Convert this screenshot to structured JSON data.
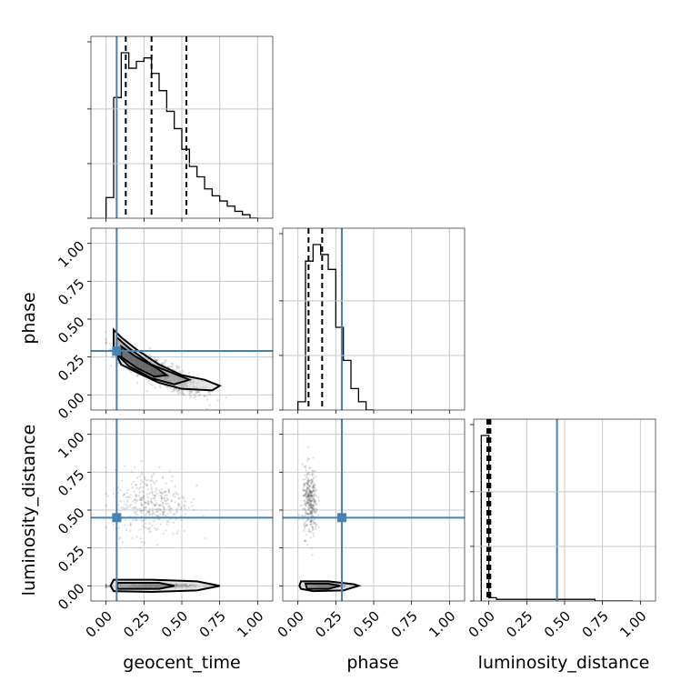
{
  "chart_data": {
    "type": "corner",
    "parameters": [
      "geocent_time",
      "phase",
      "luminosity_distance"
    ],
    "axis_labels": {
      "geocent_time": "geocent_time",
      "phase": "phase",
      "luminosity_distance": "luminosity_distance"
    },
    "ticks": [
      0.0,
      0.25,
      0.5,
      0.75,
      1.0
    ],
    "tick_labels": [
      "0.00",
      "0.25",
      "0.50",
      "0.75",
      "1.00"
    ],
    "ranges": {
      "geocent_time": [
        -0.1,
        1.1
      ],
      "phase": [
        -0.1,
        1.1
      ],
      "luminosity_distance": [
        -0.1,
        1.1
      ]
    },
    "truths": {
      "geocent_time": 0.07,
      "phase": 0.29,
      "luminosity_distance": 0.45
    },
    "truth_color": "#4682b4",
    "line_color": "#000000",
    "grid": true,
    "quantiles": {
      "geocent_time": [
        0.13,
        0.3,
        0.53
      ],
      "phase": [
        0.07,
        0.16,
        0.29
      ],
      "luminosity_distance": [
        -0.01,
        0.0,
        0.01
      ]
    },
    "histograms": {
      "geocent_time": {
        "bin_edges": [
          0.0,
          0.05,
          0.1,
          0.15,
          0.2,
          0.25,
          0.3,
          0.35,
          0.4,
          0.45,
          0.5,
          0.55,
          0.6,
          0.65,
          0.7,
          0.75,
          0.8,
          0.85,
          0.9,
          0.95,
          1.0
        ],
        "counts": [
          12,
          70,
          96,
          87,
          91,
          93,
          84,
          74,
          62,
          52,
          40,
          30,
          24,
          17,
          13,
          10,
          7,
          4,
          2,
          0
        ]
      },
      "phase": {
        "bin_edges": [
          0.0,
          0.05,
          0.1,
          0.15,
          0.2,
          0.25,
          0.3,
          0.35,
          0.4,
          0.45,
          0.5
        ],
        "counts": [
          5,
          90,
          100,
          94,
          85,
          50,
          30,
          13,
          5,
          0
        ]
      },
      "luminosity_distance": {
        "bin_edges": [
          -0.05,
          0.0,
          0.05,
          0.3,
          0.45,
          0.7,
          0.95
        ],
        "counts": [
          100,
          2,
          1,
          1,
          1,
          0
        ]
      }
    },
    "scatter_clouds": {
      "phase_vs_geocent_time": [
        {
          "x_center": 0.35,
          "x_spread": 0.28,
          "y_center": 0.15,
          "y_spread": 0.08,
          "slope": -0.45,
          "n": 900
        }
      ],
      "luminosity_distance_vs_geocent_time": [
        {
          "x_center": 0.32,
          "x_spread": 0.25,
          "y_center": 0.0,
          "y_spread": 0.012,
          "slope": 0,
          "n": 700
        },
        {
          "x_center": 0.3,
          "x_spread": 0.25,
          "y_center": 0.55,
          "y_spread": 0.22,
          "slope": 0,
          "n": 350
        }
      ],
      "luminosity_distance_vs_phase": [
        {
          "x_center": 0.18,
          "x_spread": 0.1,
          "y_center": 0.0,
          "y_spread": 0.012,
          "slope": 0,
          "n": 700
        },
        {
          "x_center": 0.08,
          "x_spread": 0.05,
          "y_center": 0.55,
          "y_spread": 0.22,
          "slope": -0.2,
          "n": 350
        }
      ]
    },
    "contours": {
      "phase_vs_geocent_time": [
        [
          [
            0.05,
            0.43
          ],
          [
            0.1,
            0.38
          ],
          [
            0.2,
            0.3
          ],
          [
            0.35,
            0.2
          ],
          [
            0.5,
            0.13
          ],
          [
            0.65,
            0.1
          ],
          [
            0.75,
            0.06
          ],
          [
            0.7,
            0.03
          ],
          [
            0.5,
            0.04
          ],
          [
            0.35,
            0.08
          ],
          [
            0.2,
            0.15
          ],
          [
            0.1,
            0.2
          ],
          [
            0.05,
            0.3
          ],
          [
            0.05,
            0.43
          ]
        ],
        [
          [
            0.07,
            0.38
          ],
          [
            0.15,
            0.31
          ],
          [
            0.3,
            0.2
          ],
          [
            0.45,
            0.14
          ],
          [
            0.55,
            0.1
          ],
          [
            0.45,
            0.07
          ],
          [
            0.3,
            0.11
          ],
          [
            0.15,
            0.19
          ],
          [
            0.07,
            0.27
          ],
          [
            0.07,
            0.38
          ]
        ],
        [
          [
            0.1,
            0.32
          ],
          [
            0.2,
            0.25
          ],
          [
            0.33,
            0.18
          ],
          [
            0.4,
            0.13
          ],
          [
            0.32,
            0.12
          ],
          [
            0.2,
            0.18
          ],
          [
            0.1,
            0.25
          ],
          [
            0.1,
            0.32
          ]
        ]
      ],
      "luminosity_distance_vs_geocent_time": [
        [
          [
            0.05,
            0.04
          ],
          [
            0.3,
            0.04
          ],
          [
            0.6,
            0.03
          ],
          [
            0.75,
            0.0
          ],
          [
            0.6,
            -0.03
          ],
          [
            0.3,
            -0.04
          ],
          [
            0.05,
            -0.035
          ],
          [
            0.03,
            0.0
          ],
          [
            0.05,
            0.04
          ]
        ],
        [
          [
            0.08,
            0.02
          ],
          [
            0.35,
            0.02
          ],
          [
            0.45,
            0.0
          ],
          [
            0.35,
            -0.02
          ],
          [
            0.08,
            -0.02
          ],
          [
            0.07,
            0.0
          ],
          [
            0.08,
            0.02
          ]
        ]
      ],
      "luminosity_distance_vs_phase": [
        [
          [
            0.02,
            0.03
          ],
          [
            0.2,
            0.03
          ],
          [
            0.37,
            0.01
          ],
          [
            0.4,
            0.0
          ],
          [
            0.3,
            -0.03
          ],
          [
            0.1,
            -0.035
          ],
          [
            0.02,
            -0.02
          ],
          [
            0.01,
            0.0
          ],
          [
            0.02,
            0.03
          ]
        ],
        [
          [
            0.05,
            0.015
          ],
          [
            0.2,
            0.015
          ],
          [
            0.28,
            0.0
          ],
          [
            0.2,
            -0.02
          ],
          [
            0.06,
            -0.02
          ],
          [
            0.05,
            0.015
          ]
        ]
      ]
    }
  }
}
